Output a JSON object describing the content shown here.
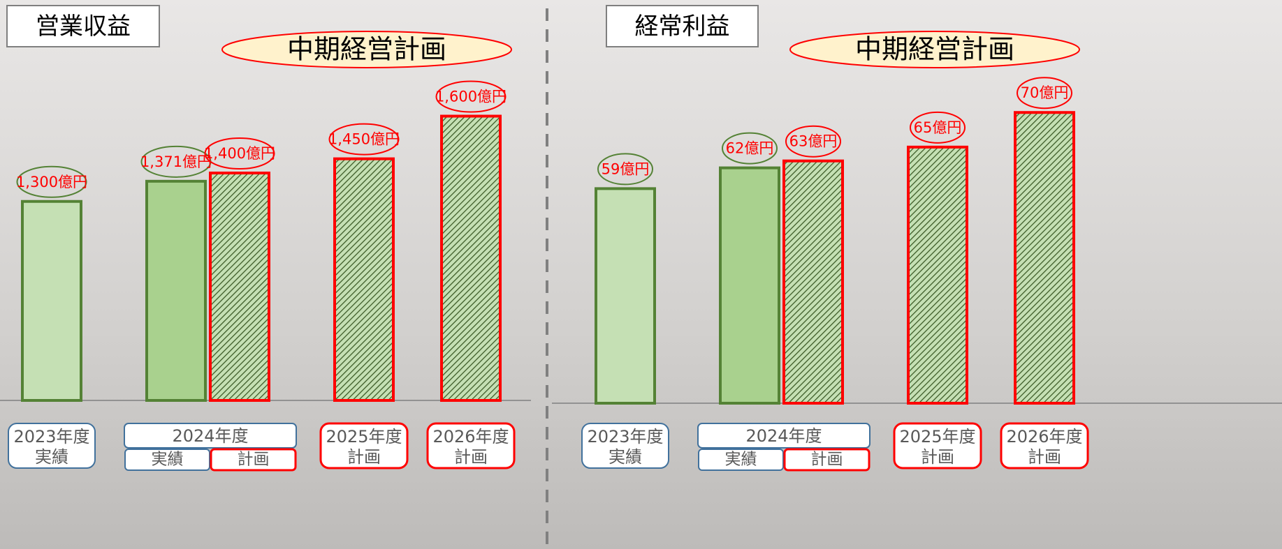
{
  "chart_data": [
    {
      "type": "bar",
      "title": "営業収益",
      "annotation": "中期経営計画",
      "categories": [
        "実績",
        "実績",
        "計画",
        "計画",
        "計画"
      ],
      "group_labels": [
        "2023年度",
        "2024年度",
        null,
        "2025年度",
        "2026年度"
      ],
      "values": [
        1300,
        1371,
        1400,
        1450,
        1600
      ],
      "value_labels": [
        "1,300億円",
        "1,371億円",
        "1,400億円",
        "1,450億円",
        "1,600億円"
      ],
      "colors": [
        "#c5e0b4",
        "#a9d18e",
        "#c5e0b4",
        "#c5e0b4",
        "#c5e0b4"
      ],
      "border_colors": [
        "#548235",
        "#548235",
        "#ff0000",
        "#ff0000",
        "#ff0000"
      ],
      "hatched": [
        false,
        false,
        true,
        true,
        true
      ],
      "ylim": [
        600,
        1800
      ]
    },
    {
      "type": "bar",
      "title": "経常利益",
      "annotation": "中期経営計画",
      "categories": [
        "実績",
        "実績",
        "計画",
        "計画",
        "計画"
      ],
      "group_labels": [
        "2023年度",
        "2024年度",
        null,
        "2025年度",
        "2026年度"
      ],
      "values": [
        59,
        62,
        63,
        65,
        70
      ],
      "value_labels": [
        "59億円",
        "62億円",
        "63億円",
        "65億円",
        "70億円"
      ],
      "colors": [
        "#c5e0b4",
        "#a9d18e",
        "#c5e0b4",
        "#c5e0b4",
        "#c5e0b4"
      ],
      "border_colors": [
        "#548235",
        "#548235",
        "#ff0000",
        "#ff0000",
        "#ff0000"
      ],
      "hatched": [
        false,
        false,
        true,
        true,
        true
      ],
      "ylim": [
        28,
        80
      ]
    }
  ]
}
